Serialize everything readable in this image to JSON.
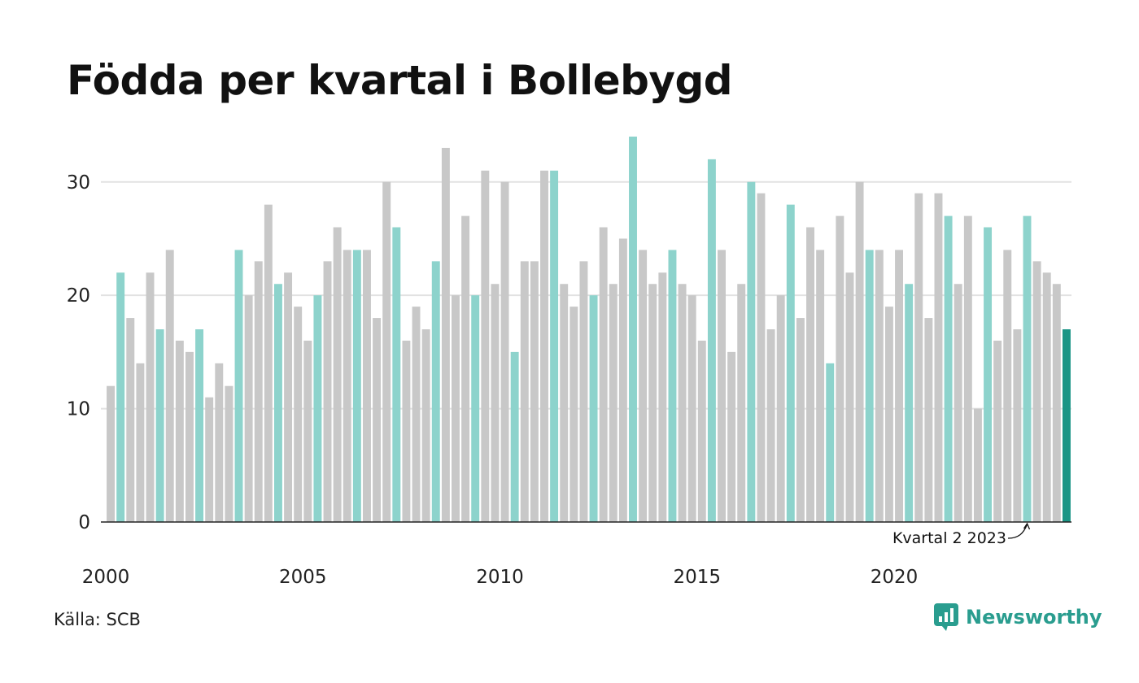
{
  "chart_data": {
    "type": "bar",
    "title": "Födda per kvartal i Bollebygd",
    "xlabel": "",
    "ylabel": "",
    "ylim": [
      0,
      34
    ],
    "yticks": [
      0,
      10,
      20,
      30
    ],
    "x_tick_labels": [
      "2000",
      "2005",
      "2010",
      "2015",
      "2020"
    ],
    "grid": true,
    "legend": "none",
    "highlight_rule": "quarter 2 of each year highlighted; last bar darker",
    "colors": {
      "other": "#c8c8c8",
      "q2": "#8dd3cc",
      "latest": "#1a9585"
    },
    "categories": [
      "2000 K1",
      "2000 K2",
      "2000 K3",
      "2000 K4",
      "2001 K1",
      "2001 K2",
      "2001 K3",
      "2001 K4",
      "2002 K1",
      "2002 K2",
      "2002 K3",
      "2002 K4",
      "2003 K1",
      "2003 K2",
      "2003 K3",
      "2003 K4",
      "2004 K1",
      "2004 K2",
      "2004 K3",
      "2004 K4",
      "2005 K1",
      "2005 K2",
      "2005 K3",
      "2005 K4",
      "2006 K1",
      "2006 K2",
      "2006 K3",
      "2006 K4",
      "2007 K1",
      "2007 K2",
      "2007 K3",
      "2007 K4",
      "2008 K1",
      "2008 K2",
      "2008 K3",
      "2008 K4",
      "2009 K1",
      "2009 K2",
      "2009 K3",
      "2009 K4",
      "2010 K1",
      "2010 K2",
      "2010 K3",
      "2010 K4",
      "2011 K1",
      "2011 K2",
      "2011 K3",
      "2011 K4",
      "2012 K1",
      "2012 K2",
      "2012 K3",
      "2012 K4",
      "2013 K1",
      "2013 K2",
      "2013 K3",
      "2013 K4",
      "2014 K1",
      "2014 K2",
      "2014 K3",
      "2014 K4",
      "2015 K1",
      "2015 K2",
      "2015 K3",
      "2015 K4",
      "2016 K1",
      "2016 K2",
      "2016 K3",
      "2016 K4",
      "2017 K1",
      "2017 K2",
      "2017 K3",
      "2017 K4",
      "2018 K1",
      "2018 K2",
      "2018 K3",
      "2018 K4",
      "2019 K1",
      "2019 K2",
      "2019 K3",
      "2019 K4",
      "2020 K1",
      "2020 K2",
      "2020 K3",
      "2020 K4",
      "2021 K1",
      "2021 K2",
      "2021 K3",
      "2021 K4",
      "2022 K1",
      "2022 K2",
      "2022 K3",
      "2022 K4",
      "2023 K1",
      "2023 K2",
      "2023 K3",
      "2023 K4",
      "2024 K1",
      "2024 K2"
    ],
    "values": [
      12,
      22,
      18,
      14,
      22,
      17,
      24,
      16,
      15,
      17,
      11,
      14,
      12,
      24,
      20,
      23,
      28,
      21,
      22,
      19,
      16,
      20,
      23,
      26,
      24,
      24,
      24,
      18,
      30,
      26,
      16,
      19,
      17,
      23,
      33,
      20,
      27,
      20,
      31,
      21,
      30,
      15,
      23,
      23,
      31,
      31,
      21,
      19,
      23,
      20,
      26,
      21,
      25,
      34,
      24,
      21,
      22,
      24,
      21,
      20,
      16,
      32,
      24,
      15,
      21,
      30,
      29,
      17,
      20,
      28,
      18,
      26,
      24,
      14,
      27,
      22,
      30,
      24,
      24,
      19,
      24,
      21,
      29,
      18,
      29,
      27,
      21,
      27,
      10,
      26,
      16,
      24,
      17,
      27,
      23,
      22,
      21,
      17
    ],
    "annotation": {
      "text": "Kvartal 2 2023",
      "target_index": 93
    }
  },
  "source": "Källa: SCB",
  "brand": "Newsworthy"
}
